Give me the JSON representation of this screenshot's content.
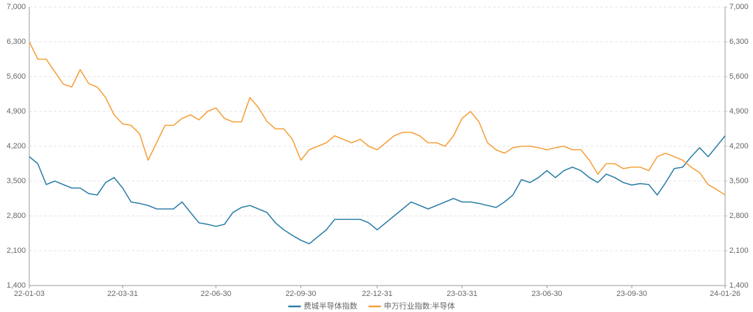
{
  "chart_data": {
    "type": "line",
    "categories": [
      "22-01-03",
      null,
      null,
      null,
      null,
      null,
      null,
      null,
      null,
      null,
      null,
      "22-03-31",
      null,
      null,
      null,
      null,
      null,
      null,
      null,
      null,
      null,
      null,
      "22-06-30",
      null,
      null,
      null,
      null,
      null,
      null,
      null,
      null,
      null,
      "22-09-30",
      null,
      null,
      null,
      null,
      null,
      null,
      null,
      null,
      "22-12-31",
      null,
      null,
      null,
      null,
      null,
      null,
      null,
      null,
      null,
      "23-03-31",
      null,
      null,
      null,
      null,
      null,
      null,
      null,
      null,
      null,
      "23-06-30",
      null,
      null,
      null,
      null,
      null,
      null,
      null,
      null,
      null,
      "23-09-30",
      null,
      null,
      null,
      null,
      null,
      null,
      null,
      null,
      null,
      null,
      "24-01-26"
    ],
    "series": [
      {
        "name": "费城半导体指数",
        "color": "#2e7fa8",
        "values": [
          3990,
          3850,
          3430,
          3500,
          3430,
          3360,
          3360,
          3250,
          3220,
          3470,
          3570,
          3360,
          3080,
          3050,
          3010,
          2940,
          2940,
          2940,
          3080,
          2870,
          2660,
          2630,
          2590,
          2630,
          2870,
          2970,
          3010,
          2940,
          2870,
          2660,
          2520,
          2410,
          2310,
          2240,
          2380,
          2520,
          2730,
          2730,
          2730,
          2730,
          2660,
          2520,
          2660,
          2800,
          2940,
          3080,
          3010,
          2940,
          3010,
          3080,
          3150,
          3080,
          3080,
          3050,
          3010,
          2970,
          3080,
          3220,
          3530,
          3470,
          3570,
          3710,
          3570,
          3710,
          3780,
          3710,
          3570,
          3470,
          3640,
          3570,
          3470,
          3420,
          3450,
          3430,
          3220,
          3470,
          3750,
          3780,
          3990,
          4170,
          3990,
          4200,
          4410
        ]
      },
      {
        "name": "申万行业指数:半导体",
        "color": "#f5a03c",
        "axis": "y2",
        "values": [
          6300,
          5950,
          5950,
          5700,
          5450,
          5390,
          5740,
          5460,
          5390,
          5180,
          4830,
          4650,
          4620,
          4450,
          3920,
          4270,
          4620,
          4620,
          4760,
          4830,
          4730,
          4900,
          4970,
          4760,
          4690,
          4690,
          5180,
          4980,
          4700,
          4550,
          4550,
          4340,
          3920,
          4130,
          4200,
          4270,
          4410,
          4340,
          4270,
          4340,
          4200,
          4130,
          4270,
          4410,
          4480,
          4480,
          4410,
          4270,
          4270,
          4200,
          4410,
          4760,
          4900,
          4690,
          4270,
          4130,
          4060,
          4170,
          4200,
          4200,
          4170,
          4130,
          4170,
          4200,
          4130,
          4130,
          3920,
          3640,
          3850,
          3850,
          3750,
          3780,
          3780,
          3710,
          3990,
          4060,
          3990,
          3920,
          3780,
          3670,
          3430,
          3330,
          3220
        ]
      }
    ],
    "ylim": [
      1400,
      7000
    ],
    "yticks": [
      {
        "value": 1400,
        "label": "1,400"
      },
      {
        "value": 2100,
        "label": "2,100"
      },
      {
        "value": 2800,
        "label": "2,800"
      },
      {
        "value": 3500,
        "label": "3,500"
      },
      {
        "value": 4200,
        "label": "4,200"
      },
      {
        "value": 4900,
        "label": "4,900"
      },
      {
        "value": 5600,
        "label": "5,600"
      },
      {
        "value": 6300,
        "label": "6,300"
      },
      {
        "value": 7000,
        "label": "7,000"
      }
    ],
    "y2lim": [
      1400,
      7000
    ],
    "y2ticks": [
      {
        "value": 1400,
        "label": "1,400"
      },
      {
        "value": 2100,
        "label": "2,100"
      },
      {
        "value": 2800,
        "label": "2,800"
      },
      {
        "value": 3500,
        "label": "3,500"
      },
      {
        "value": 4200,
        "label": "4,200"
      },
      {
        "value": 4900,
        "label": "4,900"
      },
      {
        "value": 5600,
        "label": "5,600"
      },
      {
        "value": 6300,
        "label": "6,300"
      },
      {
        "value": 7000,
        "label": "7,000"
      }
    ],
    "grid": true,
    "legend": "bottom"
  }
}
